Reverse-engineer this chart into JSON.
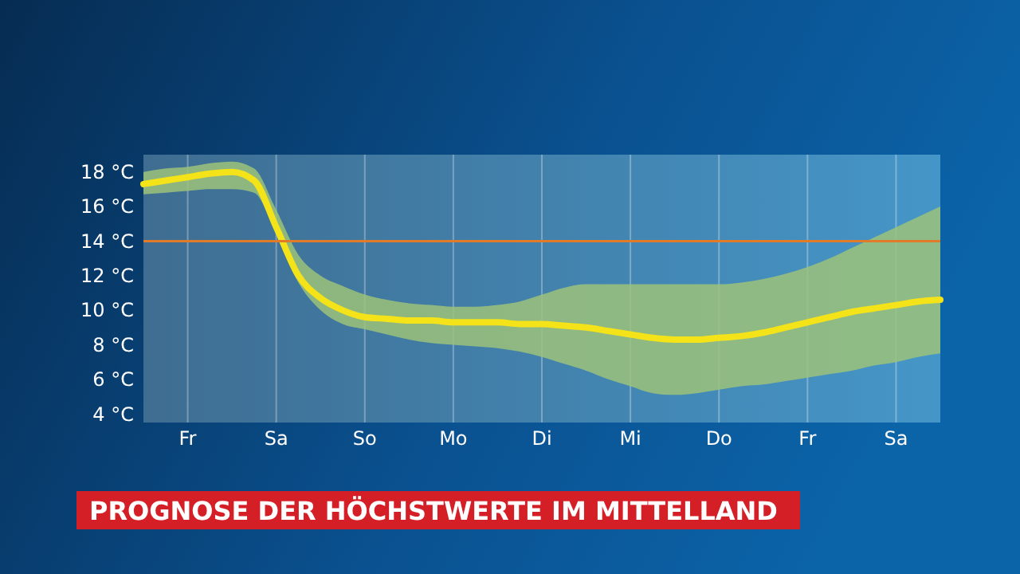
{
  "chart_data": {
    "type": "line",
    "title": "PROGNOSE DER HÖCHSTWERTE IM MITTELLAND",
    "categories": [
      null,
      null,
      "Fr",
      null,
      null,
      null,
      "Sa",
      null,
      null,
      null,
      "So",
      null,
      null,
      null,
      "Mo",
      null,
      null,
      null,
      "Di",
      null,
      null,
      null,
      "Mi",
      null,
      null,
      null,
      "Do",
      null,
      null,
      null,
      "Fr",
      null,
      null,
      null,
      "Sa",
      null,
      null
    ],
    "series": [
      {
        "color": "#f5e31a",
        "values": [
          17.3,
          17.5,
          17.7,
          17.9,
          18.0,
          17.5,
          14.8,
          12.0,
          10.7,
          10.0,
          9.6,
          9.5,
          9.4,
          9.4,
          9.3,
          9.3,
          9.3,
          9.2,
          9.2,
          9.1,
          9.0,
          8.8,
          8.6,
          8.4,
          8.3,
          8.3,
          8.4,
          8.5,
          8.7,
          9.0,
          9.3,
          9.6,
          9.9,
          10.1,
          10.3,
          10.5,
          10.6
        ],
        "lower": [
          16.7,
          16.8,
          16.9,
          17.0,
          17.0,
          16.8,
          14.4,
          11.6,
          10.0,
          9.2,
          8.9,
          8.6,
          8.3,
          8.1,
          8.0,
          7.9,
          7.8,
          7.6,
          7.3,
          6.9,
          6.5,
          6.0,
          5.6,
          5.2,
          5.1,
          5.2,
          5.4,
          5.6,
          5.7,
          5.9,
          6.1,
          6.3,
          6.5,
          6.8,
          7.0,
          7.3,
          7.5
        ],
        "upper": [
          18.0,
          18.2,
          18.3,
          18.5,
          18.6,
          18.2,
          15.8,
          13.2,
          12.0,
          11.4,
          10.9,
          10.6,
          10.4,
          10.3,
          10.2,
          10.2,
          10.3,
          10.5,
          10.9,
          11.3,
          11.5,
          11.5,
          11.5,
          11.5,
          11.5,
          11.5,
          11.5,
          11.6,
          11.8,
          12.1,
          12.5,
          13.0,
          13.6,
          14.2,
          14.8,
          15.4,
          16.0
        ]
      }
    ],
    "ylim": [
      3.5,
      19
    ],
    "yticks": [
      {
        "value": 4,
        "label": "4 °C"
      },
      {
        "value": 6,
        "label": "6 °C"
      },
      {
        "value": 8,
        "label": "8 °C"
      },
      {
        "value": 10,
        "label": "10 °C"
      },
      {
        "value": 12,
        "label": "12 °C"
      },
      {
        "value": 14,
        "label": "14 °C"
      },
      {
        "value": 16,
        "label": "16 °C"
      },
      {
        "value": 18,
        "label": "18 °C"
      }
    ],
    "grid": "x",
    "ref_lines": [
      {
        "axis": "y",
        "value": 14,
        "color": "#e07b2a"
      }
    ]
  }
}
